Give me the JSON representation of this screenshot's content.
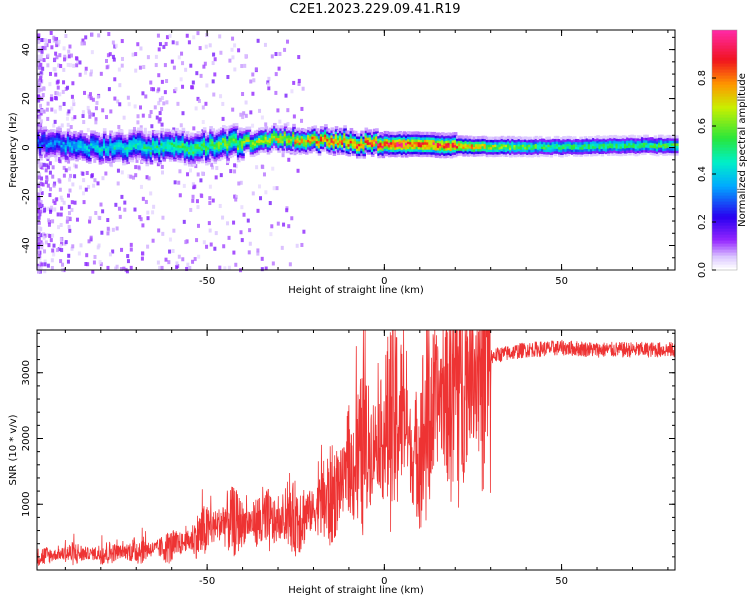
{
  "title": "C2E1.2023.229.09.41.R19",
  "chart_data": [
    {
      "type": "heatmap",
      "xlabel": "Height of straight line (km)",
      "ylabel": "Frequency (Hz)",
      "xlim": [
        -98,
        82
      ],
      "ylim": [
        -50,
        48
      ],
      "x_ticks": [
        -50,
        0,
        50
      ],
      "y_ticks": [
        -40,
        -20,
        0,
        20,
        40
      ],
      "colorbar": {
        "label": "Normalized spectral amplitude",
        "range": [
          0,
          1
        ],
        "ticks": [
          "0.0",
          "0.2",
          "0.4",
          "0.6",
          "0.8"
        ]
      },
      "ridge": {
        "description_points_x": [
          -98,
          -90,
          -80,
          -70,
          -60,
          -50,
          -40,
          -30,
          -20,
          -10,
          0,
          10,
          20,
          30,
          40,
          50,
          60,
          70,
          82
        ],
        "center_hz": [
          2,
          1,
          0,
          0.5,
          0,
          1,
          2.5,
          4,
          3.5,
          2.5,
          1.5,
          1.5,
          1,
          0.5,
          0.5,
          0.5,
          0.8,
          1,
          1
        ],
        "peak_amplitude": [
          0.3,
          0.4,
          0.45,
          0.5,
          0.55,
          0.6,
          0.65,
          0.75,
          0.85,
          0.9,
          0.95,
          0.95,
          0.9,
          0.7,
          0.6,
          0.55,
          0.55,
          0.55,
          0.6
        ]
      }
    },
    {
      "type": "line",
      "xlabel": "Height of straight line (km)",
      "ylabel": "SNR (10 * v/v)",
      "xlim": [
        -98,
        82
      ],
      "ylim": [
        0,
        3650
      ],
      "x_ticks": [
        -50,
        0,
        50
      ],
      "y_ticks": [
        1000,
        2000,
        3000
      ],
      "series_color": "#ee3333",
      "envelope_x": [
        -98,
        -90,
        -80,
        -70,
        -60,
        -55,
        -50,
        -45,
        -40,
        -35,
        -30,
        -25,
        -20,
        -15,
        -10,
        -5,
        0,
        5,
        8,
        10,
        15,
        20,
        25,
        30,
        40,
        50,
        60,
        70,
        82
      ],
      "envelope_y": [
        200,
        250,
        250,
        300,
        350,
        450,
        600,
        750,
        700,
        750,
        700,
        800,
        900,
        1100,
        1500,
        1800,
        2100,
        2400,
        1700,
        1900,
        2600,
        2900,
        3100,
        3250,
        3350,
        3380,
        3350,
        3350,
        3350
      ]
    }
  ]
}
